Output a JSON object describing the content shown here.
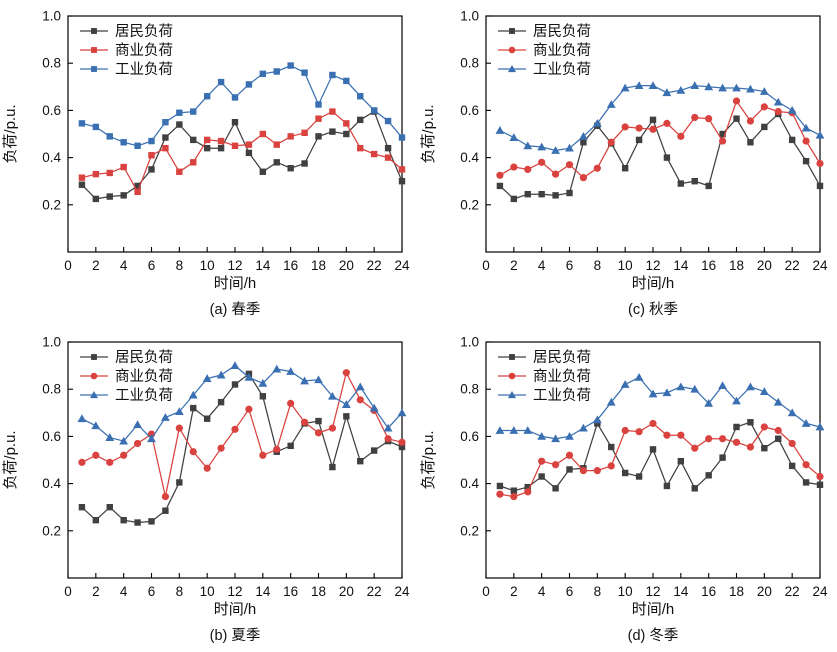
{
  "figure": {
    "background": "#ffffff",
    "axis_color": "#000000",
    "text_color": "#111111",
    "series_colors": {
      "residential": "#404040",
      "commercial": "#d9423e",
      "industrial": "#3a70b2"
    },
    "legend": [
      "居民负荷",
      "商业负荷",
      "工业负荷"
    ]
  },
  "chart_data": [
    {
      "type": "line",
      "id": "spring",
      "caption": "(a) 春季",
      "xlabel": "时间/h",
      "ylabel": "负荷/p.u.",
      "xlim": [
        0,
        24
      ],
      "ylim": [
        0,
        1.0
      ],
      "xticks": [
        0,
        2,
        4,
        6,
        8,
        10,
        12,
        14,
        16,
        18,
        20,
        22,
        24
      ],
      "yticks": [
        0.2,
        0.4,
        0.6,
        0.8,
        1.0
      ],
      "x": [
        1,
        2,
        3,
        4,
        5,
        6,
        7,
        8,
        9,
        10,
        11,
        12,
        13,
        14,
        15,
        16,
        17,
        18,
        19,
        20,
        21,
        22,
        23,
        24
      ],
      "legend_position": "top-left",
      "grid": false,
      "series": [
        {
          "key": "residential",
          "name": "居民负荷",
          "color": "#404040",
          "marker": "square",
          "values": [
            0.285,
            0.225,
            0.235,
            0.24,
            0.28,
            0.35,
            0.485,
            0.54,
            0.475,
            0.44,
            0.44,
            0.55,
            0.42,
            0.34,
            0.38,
            0.355,
            0.375,
            0.49,
            0.51,
            0.5,
            0.56,
            0.595,
            0.44,
            0.3
          ]
        },
        {
          "key": "commercial",
          "name": "商业负荷",
          "color": "#d9423e",
          "marker": "square",
          "values": [
            0.315,
            0.33,
            0.335,
            0.36,
            0.255,
            0.41,
            0.44,
            0.34,
            0.38,
            0.475,
            0.47,
            0.45,
            0.455,
            0.5,
            0.455,
            0.49,
            0.505,
            0.565,
            0.595,
            0.545,
            0.44,
            0.415,
            0.4,
            0.35
          ]
        },
        {
          "key": "industrial",
          "name": "工业负荷",
          "color": "#3a70b2",
          "marker": "square",
          "values": [
            0.545,
            0.53,
            0.49,
            0.465,
            0.45,
            0.47,
            0.55,
            0.59,
            0.595,
            0.66,
            0.72,
            0.655,
            0.71,
            0.755,
            0.765,
            0.79,
            0.76,
            0.625,
            0.75,
            0.725,
            0.66,
            0.6,
            0.555,
            0.485
          ]
        }
      ]
    },
    {
      "type": "line",
      "id": "summer",
      "caption": "(b) 夏季",
      "xlabel": "时间/h",
      "ylabel": "负荷/p.u.",
      "xlim": [
        0,
        24
      ],
      "ylim": [
        0,
        1.0
      ],
      "xticks": [
        0,
        2,
        4,
        6,
        8,
        10,
        12,
        14,
        16,
        18,
        20,
        22,
        24
      ],
      "yticks": [
        0.2,
        0.4,
        0.6,
        0.8,
        1.0
      ],
      "x": [
        1,
        2,
        3,
        4,
        5,
        6,
        7,
        8,
        9,
        10,
        11,
        12,
        13,
        14,
        15,
        16,
        17,
        18,
        19,
        20,
        21,
        22,
        23,
        24
      ],
      "legend_position": "top-left",
      "grid": false,
      "series": [
        {
          "key": "residential",
          "name": "居民负荷",
          "color": "#404040",
          "marker": "square",
          "values": [
            0.3,
            0.245,
            0.3,
            0.245,
            0.235,
            0.24,
            0.285,
            0.405,
            0.72,
            0.675,
            0.745,
            0.82,
            0.865,
            0.77,
            0.535,
            0.56,
            0.655,
            0.665,
            0.47,
            0.685,
            0.495,
            0.54,
            0.58,
            0.555
          ]
        },
        {
          "key": "commercial",
          "name": "商业负荷",
          "color": "#d9423e",
          "marker": "circle",
          "values": [
            0.49,
            0.52,
            0.49,
            0.52,
            0.57,
            0.61,
            0.345,
            0.635,
            0.535,
            0.465,
            0.55,
            0.63,
            0.715,
            0.52,
            0.545,
            0.74,
            0.66,
            0.615,
            0.635,
            0.87,
            0.755,
            0.71,
            0.59,
            0.575
          ]
        },
        {
          "key": "industrial",
          "name": "工业负荷",
          "color": "#3a70b2",
          "marker": "triangle",
          "values": [
            0.675,
            0.645,
            0.595,
            0.58,
            0.65,
            0.59,
            0.68,
            0.705,
            0.775,
            0.845,
            0.86,
            0.9,
            0.85,
            0.825,
            0.885,
            0.875,
            0.835,
            0.84,
            0.77,
            0.735,
            0.81,
            0.72,
            0.635,
            0.7
          ]
        }
      ]
    },
    {
      "type": "line",
      "id": "autumn",
      "caption": "(c) 秋季",
      "xlabel": "时间/h",
      "ylabel": "负荷/p.u.",
      "xlim": [
        0,
        24
      ],
      "ylim": [
        0,
        1.0
      ],
      "xticks": [
        0,
        2,
        4,
        6,
        8,
        10,
        12,
        14,
        16,
        18,
        20,
        22,
        24
      ],
      "yticks": [
        0.2,
        0.4,
        0.6,
        0.8,
        1.0
      ],
      "x": [
        1,
        2,
        3,
        4,
        5,
        6,
        7,
        8,
        9,
        10,
        11,
        12,
        13,
        14,
        15,
        16,
        17,
        18,
        19,
        20,
        21,
        22,
        23,
        24
      ],
      "legend_position": "top-left",
      "grid": false,
      "series": [
        {
          "key": "residential",
          "name": "居民负荷",
          "color": "#404040",
          "marker": "square",
          "values": [
            0.28,
            0.225,
            0.245,
            0.245,
            0.24,
            0.25,
            0.465,
            0.535,
            0.46,
            0.355,
            0.475,
            0.56,
            0.4,
            0.29,
            0.3,
            0.28,
            0.5,
            0.565,
            0.465,
            0.53,
            0.585,
            0.475,
            0.385,
            0.28
          ]
        },
        {
          "key": "commercial",
          "name": "商业负荷",
          "color": "#d9423e",
          "marker": "circle",
          "values": [
            0.325,
            0.36,
            0.35,
            0.38,
            0.33,
            0.37,
            0.315,
            0.355,
            0.465,
            0.53,
            0.525,
            0.52,
            0.545,
            0.49,
            0.57,
            0.565,
            0.47,
            0.64,
            0.555,
            0.615,
            0.595,
            0.59,
            0.47,
            0.375
          ]
        },
        {
          "key": "industrial",
          "name": "工业负荷",
          "color": "#3a70b2",
          "marker": "triangle",
          "values": [
            0.515,
            0.485,
            0.45,
            0.445,
            0.43,
            0.44,
            0.49,
            0.545,
            0.625,
            0.695,
            0.705,
            0.705,
            0.675,
            0.685,
            0.705,
            0.7,
            0.695,
            0.695,
            0.69,
            0.68,
            0.635,
            0.6,
            0.525,
            0.495
          ]
        }
      ]
    },
    {
      "type": "line",
      "id": "winter",
      "caption": "(d) 冬季",
      "xlabel": "时间/h",
      "ylabel": "负荷/p.u.",
      "xlim": [
        0,
        24
      ],
      "ylim": [
        0,
        1.0
      ],
      "xticks": [
        0,
        2,
        4,
        6,
        8,
        10,
        12,
        14,
        16,
        18,
        20,
        22,
        24
      ],
      "yticks": [
        0.2,
        0.4,
        0.6,
        0.8,
        1.0
      ],
      "x": [
        1,
        2,
        3,
        4,
        5,
        6,
        7,
        8,
        9,
        10,
        11,
        12,
        13,
        14,
        15,
        16,
        17,
        18,
        19,
        20,
        21,
        22,
        23,
        24
      ],
      "legend_position": "top-left",
      "grid": false,
      "series": [
        {
          "key": "residential",
          "name": "居民负荷",
          "color": "#404040",
          "marker": "square",
          "values": [
            0.39,
            0.37,
            0.385,
            0.43,
            0.38,
            0.46,
            0.465,
            0.655,
            0.555,
            0.445,
            0.43,
            0.545,
            0.39,
            0.495,
            0.38,
            0.435,
            0.51,
            0.64,
            0.66,
            0.55,
            0.59,
            0.475,
            0.405,
            0.395
          ]
        },
        {
          "key": "commercial",
          "name": "商业负荷",
          "color": "#d9423e",
          "marker": "circle",
          "values": [
            0.355,
            0.345,
            0.365,
            0.495,
            0.48,
            0.52,
            0.455,
            0.455,
            0.475,
            0.625,
            0.62,
            0.655,
            0.605,
            0.605,
            0.55,
            0.59,
            0.59,
            0.575,
            0.555,
            0.64,
            0.625,
            0.57,
            0.48,
            0.43
          ]
        },
        {
          "key": "industrial",
          "name": "工业负荷",
          "color": "#3a70b2",
          "marker": "triangle",
          "values": [
            0.625,
            0.625,
            0.625,
            0.6,
            0.59,
            0.6,
            0.635,
            0.67,
            0.745,
            0.82,
            0.85,
            0.78,
            0.785,
            0.81,
            0.8,
            0.74,
            0.815,
            0.75,
            0.81,
            0.79,
            0.745,
            0.7,
            0.655,
            0.64
          ]
        }
      ]
    }
  ]
}
